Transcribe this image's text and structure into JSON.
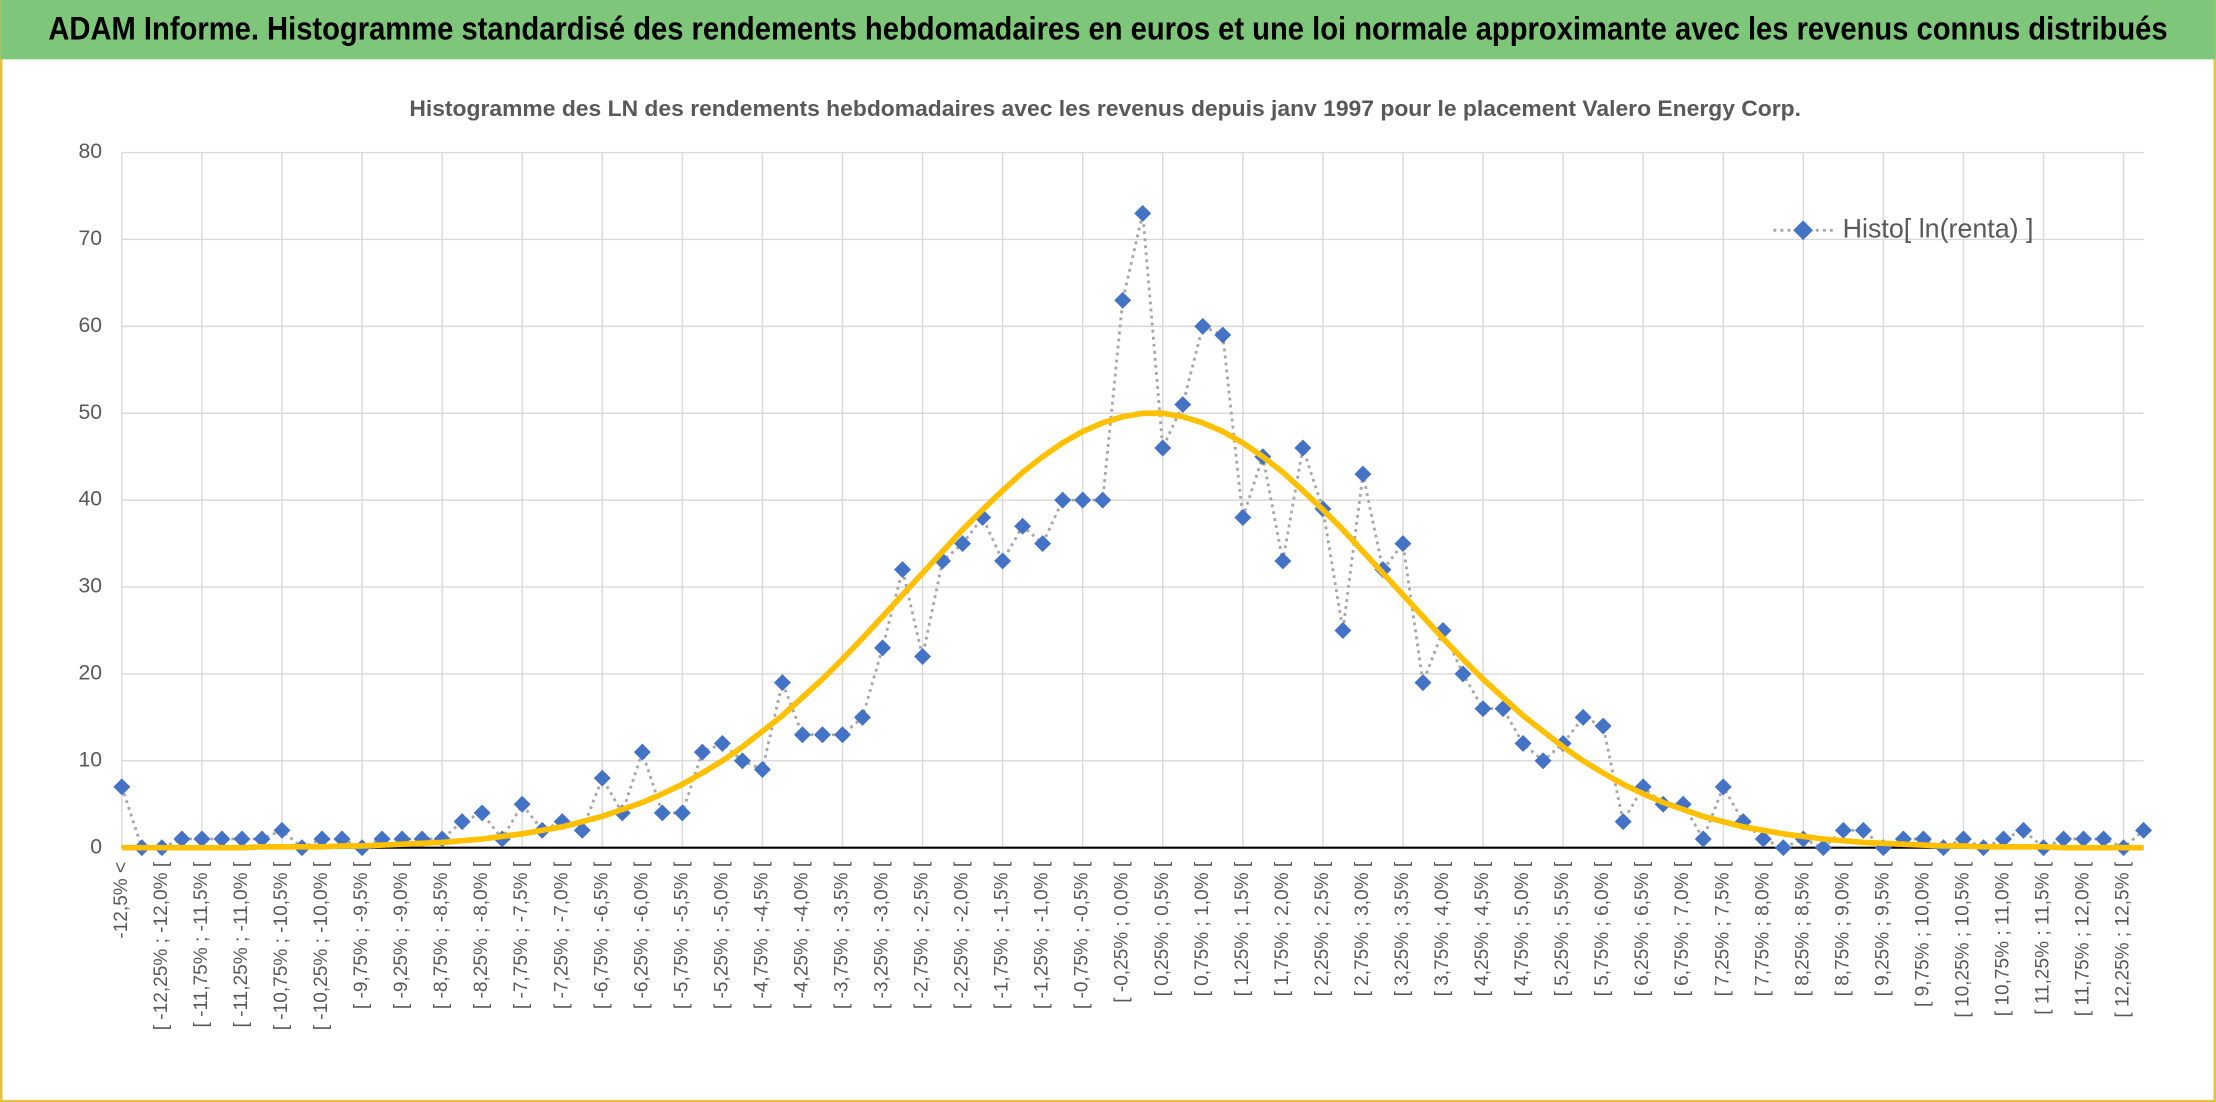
{
  "header": {
    "title": "ADAM Informe. Histogramme standardisé des rendements hebdomadaires en euros et une loi normale approximante avec les revenus connus distribués"
  },
  "chart_data": {
    "type": "line",
    "title": "Histogramme des LN des rendements hebdomadaires avec les revenus depuis janv 1997 pour le placement Valero Energy Corp.",
    "categories": [
      "-12,5% <",
      null,
      "[ -12,25% ; -12,0% [",
      null,
      "[ -11,75% ; -11,5% [",
      null,
      "[ -11,25% ; -11,0% [",
      null,
      "[ -10,75% ; -10,5% [",
      null,
      "[ -10,25% ; -10,0% [",
      null,
      "[ -9,75% ; -9,5% [",
      null,
      "[ -9,25% ; -9,0% [",
      null,
      "[ -8,75% ; -8,5% [",
      null,
      "[ -8,25% ; -8,0% [",
      null,
      "[ -7,75% ; -7,5% [",
      null,
      "[ -7,25% ; -7,0% [",
      null,
      "[ -6,75% ; -6,5% [",
      null,
      "[ -6,25% ; -6,0% [",
      null,
      "[ -5,75% ; -5,5% [",
      null,
      "[ -5,25% ; -5,0% [",
      null,
      "[ -4,75% ; -4,5% [",
      null,
      "[ -4,25% ; -4,0% [",
      null,
      "[ -3,75% ; -3,5% [",
      null,
      "[ -3,25% ; -3,0% [",
      null,
      "[ -2,75% ; -2,5% [",
      null,
      "[ -2,25% ; -2,0% [",
      null,
      "[ -1,75% ; -1,5% [",
      null,
      "[ -1,25% ; -1,0% [",
      null,
      "[ -0,75% ; -0,5% [",
      null,
      "[ -0,25% ; 0,0% [",
      null,
      "[ 0,25% ; 0,5% [",
      null,
      "[ 0,75% ; 1,0% [",
      null,
      "[ 1,25% ; 1,5% [",
      null,
      "[ 1,75% ; 2,0% [",
      null,
      "[ 2,25% ; 2,5% [",
      null,
      "[ 2,75% ; 3,0% [",
      null,
      "[ 3,25% ; 3,5% [",
      null,
      "[ 3,75% ; 4,0% [",
      null,
      "[ 4,25% ; 4,5% [",
      null,
      "[ 4,75% ; 5,0% [",
      null,
      "[ 5,25% ; 5,5% [",
      null,
      "[ 5,75% ; 6,0% [",
      null,
      "[ 6,25% ; 6,5% [",
      null,
      "[ 6,75% ; 7,0% [",
      null,
      "[ 7,25% ; 7,5% [",
      null,
      "[ 7,75% ; 8,0% [",
      null,
      "[ 8,25% ; 8,5% [",
      null,
      "[ 8,75% ; 9,0% [",
      null,
      "[ 9,25% ; 9,5% [",
      null,
      "[ 9,75% ; 10,0% [",
      null,
      "[ 10,25% ; 10,5% [",
      null,
      "[ 10,75% ; 11,0% [",
      null,
      "[ 11,25% ; 11,5% [",
      null,
      "[ 11,75% ; 12,0% [",
      null,
      "[ 12,25% ; 12,5% [",
      null
    ],
    "series": [
      {
        "name": "Histo[ ln(renta) ]",
        "color": "#4472c4",
        "line_color": "#a6a6a6",
        "marker": "diamond",
        "values": [
          7,
          0,
          0,
          1,
          1,
          1,
          1,
          1,
          2,
          0,
          1,
          1,
          0,
          1,
          1,
          1,
          1,
          3,
          4,
          1,
          5,
          2,
          3,
          2,
          8,
          4,
          11,
          4,
          4,
          11,
          12,
          10,
          9,
          19,
          13,
          13,
          13,
          15,
          23,
          32,
          22,
          33,
          35,
          38,
          33,
          37,
          35,
          40,
          40,
          40,
          63,
          73,
          46,
          51,
          60,
          59,
          38,
          45,
          33,
          46,
          39,
          25,
          43,
          32,
          35,
          19,
          25,
          20,
          16,
          16,
          12,
          10,
          12,
          15,
          14,
          3,
          7,
          5,
          5,
          1,
          7,
          3,
          1,
          0,
          1,
          0,
          2,
          2,
          0,
          1,
          1,
          0,
          1,
          0,
          1,
          2,
          0,
          1,
          1,
          1,
          0,
          2
        ]
      },
      {
        "color": "#ffc000",
        "values": [
          0,
          0,
          0,
          0,
          0,
          0,
          0,
          0.1,
          0.1,
          0.1,
          0.1,
          0.2,
          0.2,
          0.3,
          0.4,
          0.5,
          0.6,
          0.8,
          1.0,
          1.3,
          1.6,
          2.0,
          2.4,
          3.0,
          3.6,
          4.4,
          5.2,
          6.2,
          7.3,
          8.6,
          10.0,
          11.6,
          13.4,
          15.2,
          17.3,
          19.4,
          21.7,
          24.1,
          26.6,
          29.1,
          31.6,
          34.1,
          36.6,
          38.9,
          41.1,
          43.2,
          45.0,
          46.6,
          47.9,
          48.9,
          49.6,
          50.0,
          50.0,
          49.6,
          48.9,
          47.9,
          46.6,
          45.0,
          43.2,
          41.1,
          38.9,
          36.6,
          34.1,
          31.6,
          29.1,
          26.6,
          24.1,
          21.7,
          19.4,
          17.3,
          15.2,
          13.4,
          11.6,
          10.0,
          8.6,
          7.3,
          6.2,
          5.2,
          4.4,
          3.6,
          3.0,
          2.4,
          2.0,
          1.6,
          1.3,
          1.0,
          0.8,
          0.6,
          0.5,
          0.4,
          0.3,
          0.2,
          0.2,
          0.1,
          0.1,
          0.1,
          0.1,
          0,
          0,
          0,
          0,
          0
        ]
      }
    ],
    "ylim": [
      0,
      80
    ],
    "yticks": [
      0,
      10,
      20,
      30,
      40,
      50,
      60,
      70,
      80
    ],
    "grid": true,
    "legend": "top-right"
  }
}
